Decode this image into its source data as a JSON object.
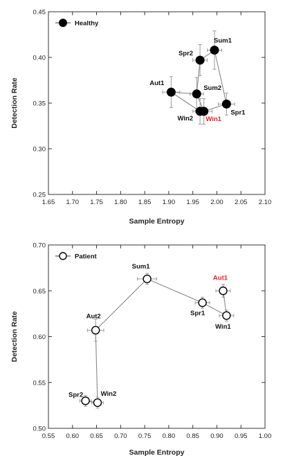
{
  "chart_data": [
    {
      "type": "scatter",
      "xlabel": "Sample Entropy",
      "ylabel": "Detection Rate",
      "xlim": [
        1.65,
        2.1
      ],
      "ylim": [
        0.25,
        0.45
      ],
      "xticks": [
        "1.65",
        "1.70",
        "1.75",
        "1.80",
        "1.85",
        "1.90",
        "1.95",
        "2.00",
        "2.05",
        "2.10"
      ],
      "yticks": [
        "0.25",
        "0.30",
        "0.35",
        "0.40",
        "0.45"
      ],
      "legend": {
        "label": "Healthy",
        "position": "top-left",
        "marker": "filled-circle"
      },
      "marker_color": "#000000",
      "highlight_color": "#e8202a",
      "connections": [
        [
          "Aut1",
          "Sum2"
        ],
        [
          "Aut1",
          "Win2"
        ],
        [
          "Sum2",
          "Win1"
        ],
        [
          "Spr2",
          "Sum1"
        ],
        [
          "Sum2",
          "Spr2"
        ],
        [
          "Sum1",
          "Spr1"
        ],
        [
          "Spr1",
          "Win1"
        ],
        [
          "Win2",
          "Win1"
        ]
      ],
      "points": [
        {
          "label": "Sum1",
          "x": 1.995,
          "y": 0.408,
          "xerr": 0.015,
          "yerr": 0.021,
          "highlight": false
        },
        {
          "label": "Spr2",
          "x": 1.965,
          "y": 0.397,
          "xerr": 0.015,
          "yerr": 0.017,
          "highlight": false
        },
        {
          "label": "Aut1",
          "x": 1.905,
          "y": 0.362,
          "xerr": 0.018,
          "yerr": 0.017,
          "highlight": false
        },
        {
          "label": "Sum2",
          "x": 1.958,
          "y": 0.36,
          "xerr": 0.014,
          "yerr": 0.018,
          "highlight": false
        },
        {
          "label": "Spr1",
          "x": 2.02,
          "y": 0.349,
          "xerr": 0.017,
          "yerr": 0.012,
          "highlight": false
        },
        {
          "label": "Win2",
          "x": 1.965,
          "y": 0.341,
          "xerr": 0.015,
          "yerr": 0.014,
          "highlight": false
        },
        {
          "label": "Win1",
          "x": 1.973,
          "y": 0.341,
          "xerr": 0.017,
          "yerr": 0.014,
          "highlight": true
        }
      ]
    },
    {
      "type": "scatter",
      "xlabel": "Sample Entropy",
      "ylabel": "Detection Rate",
      "xlim": [
        0.55,
        1.0
      ],
      "ylim": [
        0.5,
        0.7
      ],
      "xticks": [
        "0.55",
        "0.60",
        "0.65",
        "0.70",
        "0.75",
        "0.80",
        "0.85",
        "0.90",
        "0.95",
        "1.00"
      ],
      "yticks": [
        "0.50",
        "0.55",
        "0.60",
        "0.65",
        "0.70"
      ],
      "legend": {
        "label": "Patient",
        "position": "top-left",
        "marker": "open-circle"
      },
      "marker_color": "#000000",
      "highlight_color": "#e8202a",
      "connections": [
        [
          "Spr2",
          "Win2"
        ],
        [
          "Win2",
          "Aut2"
        ],
        [
          "Aut2",
          "Sum1"
        ],
        [
          "Sum1",
          "Spr1"
        ],
        [
          "Spr1",
          "Win1"
        ],
        [
          "Win1",
          "Aut1"
        ]
      ],
      "points": [
        {
          "label": "Sum1",
          "x": 0.755,
          "y": 0.663,
          "xerr": 0.02,
          "yerr": 0.006,
          "highlight": false
        },
        {
          "label": "Aut1",
          "x": 0.913,
          "y": 0.65,
          "xerr": 0.015,
          "yerr": 0.007,
          "highlight": true
        },
        {
          "label": "Spr1",
          "x": 0.87,
          "y": 0.637,
          "xerr": 0.015,
          "yerr": 0.006,
          "highlight": false
        },
        {
          "label": "Win1",
          "x": 0.92,
          "y": 0.623,
          "xerr": 0.015,
          "yerr": 0.006,
          "highlight": false
        },
        {
          "label": "Aut2",
          "x": 0.648,
          "y": 0.607,
          "xerr": 0.017,
          "yerr": 0.012,
          "highlight": false
        },
        {
          "label": "Spr2",
          "x": 0.627,
          "y": 0.53,
          "xerr": 0.012,
          "yerr": 0.006,
          "highlight": false
        },
        {
          "label": "Win2",
          "x": 0.652,
          "y": 0.528,
          "xerr": 0.012,
          "yerr": 0.006,
          "highlight": false
        }
      ]
    }
  ]
}
